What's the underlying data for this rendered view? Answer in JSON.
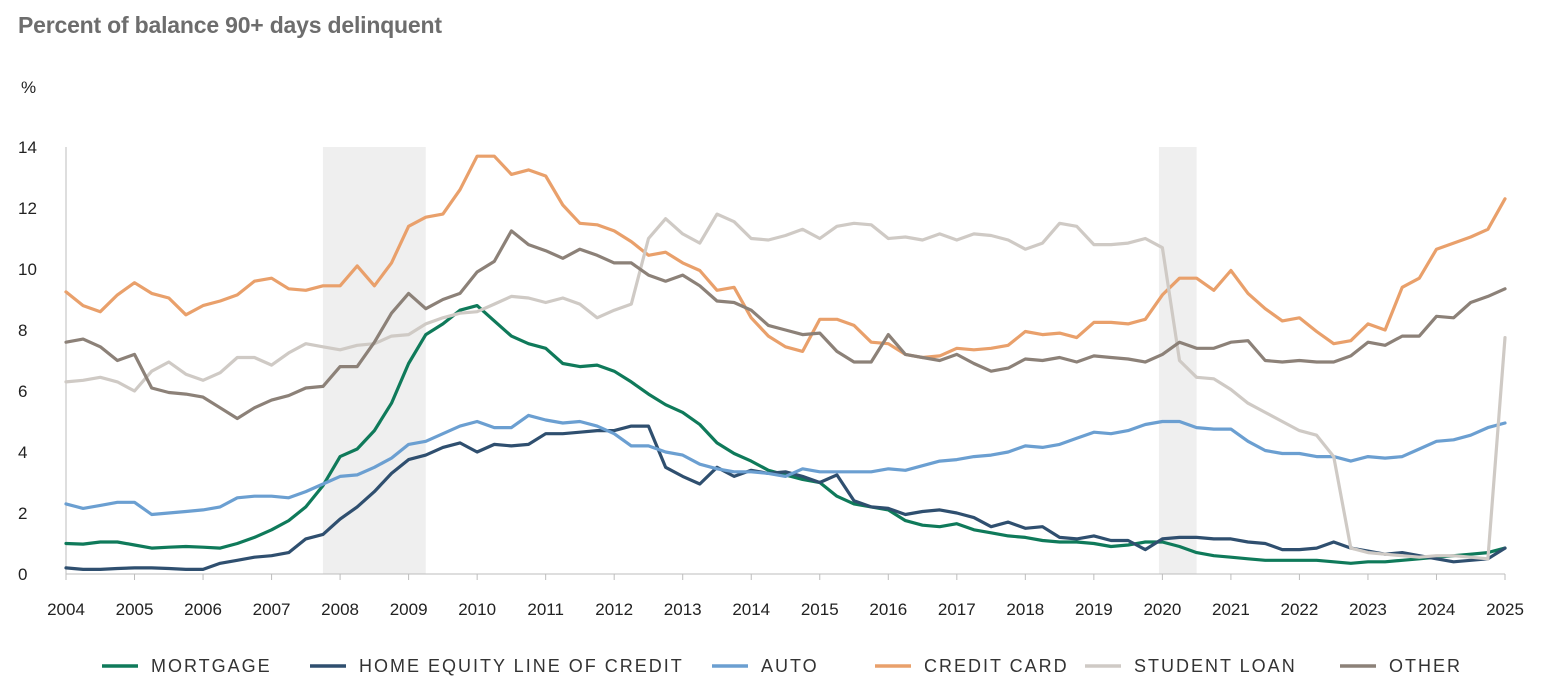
{
  "chart_data": {
    "type": "line",
    "title": "Percent of balance 90+ days delinquent",
    "ylabel": "%",
    "xlabel": "",
    "ylim": [
      0,
      14
    ],
    "xlim": [
      2004,
      2025
    ],
    "yticks": [
      "0",
      "2",
      "4",
      "6",
      "8",
      "10",
      "12",
      "14"
    ],
    "xticks": [
      "2004",
      "2005",
      "2006",
      "2007",
      "2008",
      "2009",
      "2010",
      "2011",
      "2012",
      "2013",
      "2014",
      "2015",
      "2016",
      "2017",
      "2018",
      "2019",
      "2020",
      "2021",
      "2022",
      "2023",
      "2024",
      "2025"
    ],
    "recessions": [
      [
        2007.75,
        2009.25
      ],
      [
        2019.95,
        2020.5
      ]
    ],
    "x": [
      2004.0,
      2004.25,
      2004.5,
      2004.75,
      2005.0,
      2005.25,
      2005.5,
      2005.75,
      2006.0,
      2006.25,
      2006.5,
      2006.75,
      2007.0,
      2007.25,
      2007.5,
      2007.75,
      2008.0,
      2008.25,
      2008.5,
      2008.75,
      2009.0,
      2009.25,
      2009.5,
      2009.75,
      2010.0,
      2010.25,
      2010.5,
      2010.75,
      2011.0,
      2011.25,
      2011.5,
      2011.75,
      2012.0,
      2012.25,
      2012.5,
      2012.75,
      2013.0,
      2013.25,
      2013.5,
      2013.75,
      2014.0,
      2014.25,
      2014.5,
      2014.75,
      2015.0,
      2015.25,
      2015.5,
      2015.75,
      2016.0,
      2016.25,
      2016.5,
      2016.75,
      2017.0,
      2017.25,
      2017.5,
      2017.75,
      2018.0,
      2018.25,
      2018.5,
      2018.75,
      2019.0,
      2019.25,
      2019.5,
      2019.75,
      2020.0,
      2020.25,
      2020.5,
      2020.75,
      2021.0,
      2021.25,
      2021.5,
      2021.75,
      2022.0,
      2022.25,
      2022.5,
      2022.75,
      2023.0,
      2023.25,
      2023.5,
      2023.75,
      2024.0,
      2024.25,
      2024.5,
      2024.75,
      2025.0
    ],
    "series": [
      {
        "name": "MORTGAGE",
        "color": "#0f7a5a",
        "values": [
          1.0,
          0.98,
          1.05,
          1.05,
          0.95,
          0.85,
          0.88,
          0.9,
          0.88,
          0.85,
          1.0,
          1.2,
          1.45,
          1.75,
          2.2,
          2.9,
          3.85,
          4.1,
          4.7,
          5.6,
          6.9,
          7.85,
          8.2,
          8.65,
          8.8,
          8.3,
          7.8,
          7.55,
          7.4,
          6.9,
          6.8,
          6.85,
          6.65,
          6.3,
          5.9,
          5.55,
          5.3,
          4.9,
          4.3,
          3.95,
          3.7,
          3.4,
          3.25,
          3.1,
          3.0,
          2.55,
          2.3,
          2.2,
          2.1,
          1.75,
          1.6,
          1.55,
          1.65,
          1.45,
          1.35,
          1.25,
          1.2,
          1.1,
          1.05,
          1.05,
          1.0,
          0.9,
          0.95,
          1.05,
          1.05,
          0.9,
          0.7,
          0.6,
          0.55,
          0.5,
          0.45,
          0.45,
          0.45,
          0.45,
          0.4,
          0.35,
          0.4,
          0.4,
          0.45,
          0.5,
          0.55,
          0.6,
          0.65,
          0.7,
          0.85
        ]
      },
      {
        "name": "HOME EQUITY LINE OF CREDIT",
        "color": "#2f4f6f",
        "values": [
          0.2,
          0.15,
          0.15,
          0.18,
          0.2,
          0.2,
          0.18,
          0.15,
          0.15,
          0.35,
          0.45,
          0.55,
          0.6,
          0.7,
          1.15,
          1.3,
          1.8,
          2.2,
          2.7,
          3.3,
          3.75,
          3.9,
          4.15,
          4.3,
          4.0,
          4.25,
          4.2,
          4.25,
          4.6,
          4.6,
          4.65,
          4.7,
          4.7,
          4.85,
          4.85,
          3.5,
          3.2,
          2.95,
          3.5,
          3.2,
          3.4,
          3.3,
          3.35,
          3.2,
          3.0,
          3.25,
          2.4,
          2.2,
          2.15,
          1.95,
          2.05,
          2.1,
          2.0,
          1.85,
          1.55,
          1.7,
          1.5,
          1.55,
          1.2,
          1.15,
          1.25,
          1.1,
          1.1,
          0.8,
          1.15,
          1.2,
          1.2,
          1.15,
          1.15,
          1.05,
          1.0,
          0.8,
          0.8,
          0.85,
          1.05,
          0.85,
          0.75,
          0.65,
          0.7,
          0.6,
          0.5,
          0.4,
          0.45,
          0.5,
          0.85
        ]
      },
      {
        "name": "AUTO",
        "color": "#6b9fd1",
        "values": [
          2.3,
          2.15,
          2.25,
          2.35,
          2.35,
          1.95,
          2.0,
          2.05,
          2.1,
          2.2,
          2.5,
          2.55,
          2.55,
          2.5,
          2.7,
          2.95,
          3.2,
          3.25,
          3.5,
          3.8,
          4.25,
          4.35,
          4.6,
          4.85,
          5.0,
          4.8,
          4.8,
          5.2,
          5.05,
          4.95,
          5.0,
          4.85,
          4.6,
          4.2,
          4.2,
          4.0,
          3.9,
          3.6,
          3.45,
          3.35,
          3.35,
          3.3,
          3.2,
          3.45,
          3.35,
          3.35,
          3.35,
          3.35,
          3.45,
          3.4,
          3.55,
          3.7,
          3.75,
          3.85,
          3.9,
          4.0,
          4.2,
          4.15,
          4.25,
          4.45,
          4.65,
          4.6,
          4.7,
          4.9,
          5.0,
          5.0,
          4.8,
          4.75,
          4.75,
          4.35,
          4.05,
          3.95,
          3.95,
          3.85,
          3.85,
          3.7,
          3.85,
          3.8,
          3.85,
          4.1,
          4.35,
          4.4,
          4.55,
          4.8,
          4.95
        ]
      },
      {
        "name": "CREDIT CARD",
        "color": "#e9a06b",
        "values": [
          9.25,
          8.8,
          8.6,
          9.15,
          9.55,
          9.2,
          9.05,
          8.5,
          8.8,
          8.95,
          9.15,
          9.6,
          9.7,
          9.35,
          9.3,
          9.45,
          9.45,
          10.1,
          9.45,
          10.2,
          11.4,
          11.7,
          11.8,
          12.6,
          13.7,
          13.7,
          13.1,
          13.25,
          13.05,
          12.1,
          11.5,
          11.45,
          11.25,
          10.9,
          10.45,
          10.55,
          10.2,
          9.95,
          9.3,
          9.4,
          8.4,
          7.8,
          7.45,
          7.3,
          8.35,
          8.35,
          8.15,
          7.6,
          7.55,
          7.2,
          7.1,
          7.15,
          7.4,
          7.35,
          7.4,
          7.5,
          7.95,
          7.85,
          7.9,
          7.75,
          8.25,
          8.25,
          8.2,
          8.35,
          9.15,
          9.7,
          9.7,
          9.3,
          9.95,
          9.2,
          8.7,
          8.3,
          8.4,
          7.95,
          7.55,
          7.65,
          8.2,
          8.0,
          9.4,
          9.7,
          10.65,
          10.85,
          11.05,
          11.3,
          12.3
        ]
      },
      {
        "name": "STUDENT LOAN",
        "color": "#cfcac5",
        "values": [
          6.3,
          6.35,
          6.45,
          6.3,
          6.0,
          6.65,
          6.95,
          6.55,
          6.35,
          6.6,
          7.1,
          7.1,
          6.85,
          7.25,
          7.55,
          7.45,
          7.35,
          7.5,
          7.55,
          7.8,
          7.85,
          8.2,
          8.4,
          8.55,
          8.6,
          8.85,
          9.1,
          9.05,
          8.9,
          9.05,
          8.85,
          8.4,
          8.65,
          8.85,
          11.0,
          11.65,
          11.15,
          10.85,
          11.8,
          11.55,
          11.0,
          10.95,
          11.1,
          11.3,
          11.0,
          11.4,
          11.5,
          11.45,
          11.0,
          11.05,
          10.95,
          11.15,
          10.95,
          11.15,
          11.1,
          10.95,
          10.65,
          10.85,
          11.5,
          11.4,
          10.8,
          10.8,
          10.85,
          11.0,
          10.7,
          7.0,
          6.45,
          6.4,
          6.05,
          5.6,
          5.3,
          5.0,
          4.7,
          4.55,
          3.85,
          0.85,
          0.7,
          0.65,
          0.6,
          0.55,
          0.6,
          0.6,
          0.55,
          0.5,
          7.75
        ]
      },
      {
        "name": "OTHER",
        "color": "#8c8178",
        "values": [
          7.6,
          7.7,
          7.45,
          7.0,
          7.2,
          6.1,
          5.95,
          5.9,
          5.8,
          5.45,
          5.1,
          5.45,
          5.7,
          5.85,
          6.1,
          6.15,
          6.8,
          6.8,
          7.6,
          8.55,
          9.2,
          8.7,
          9.0,
          9.2,
          9.9,
          10.25,
          11.25,
          10.8,
          10.6,
          10.35,
          10.65,
          10.45,
          10.2,
          10.2,
          9.8,
          9.6,
          9.8,
          9.45,
          8.95,
          8.9,
          8.65,
          8.15,
          8.0,
          7.85,
          7.9,
          7.3,
          6.95,
          6.95,
          7.85,
          7.2,
          7.1,
          7.0,
          7.2,
          6.9,
          6.65,
          6.75,
          7.05,
          7.0,
          7.1,
          6.95,
          7.15,
          7.1,
          7.05,
          6.95,
          7.2,
          7.6,
          7.4,
          7.4,
          7.6,
          7.65,
          7.0,
          6.95,
          7.0,
          6.95,
          6.95,
          7.15,
          7.6,
          7.5,
          7.8,
          7.8,
          8.45,
          8.4,
          8.9,
          9.1,
          9.35
        ]
      }
    ]
  }
}
